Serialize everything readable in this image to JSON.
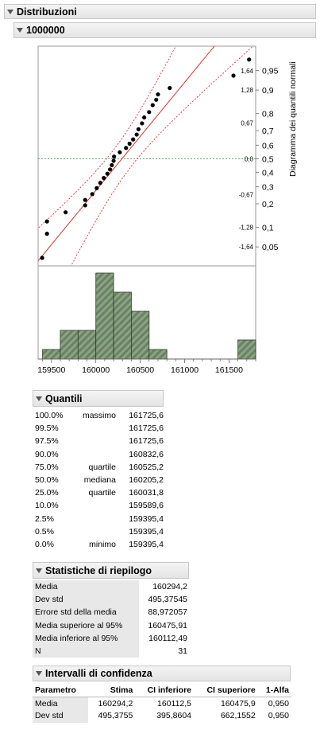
{
  "title": "Distribuzioni",
  "variable": "1000000",
  "chart_data": {
    "type": "scatter",
    "quantile_plot": {
      "side_label": "Diagramma dei quantili normali",
      "z_labels": [
        "1,64",
        "1,28",
        "0,67",
        "0,0",
        "-0,67",
        "-1,28",
        "-1,64"
      ],
      "z_values": [
        1.64,
        1.28,
        0.67,
        0.0,
        -0.67,
        -1.28,
        -1.64
      ],
      "prob_labels": [
        "0,95",
        "0,9",
        "0,8",
        "0,7",
        "0,6",
        "0,5",
        "0,4",
        "0,3",
        "0,2",
        "0,1",
        "0,05"
      ],
      "prob_values": [
        0.95,
        0.9,
        0.8,
        0.7,
        0.6,
        0.5,
        0.4,
        0.3,
        0.2,
        0.1,
        0.05
      ],
      "points": [
        [
          159395.4,
          -1.85
        ],
        [
          159450,
          -1.4
        ],
        [
          159450,
          -1.17
        ],
        [
          159660,
          -1.0
        ],
        [
          159880,
          -0.87
        ],
        [
          159880,
          -0.77
        ],
        [
          159960,
          -0.66
        ],
        [
          160010,
          -0.55
        ],
        [
          160050,
          -0.45
        ],
        [
          160090,
          -0.36
        ],
        [
          160130,
          -0.28
        ],
        [
          160160,
          -0.2
        ],
        [
          160180,
          -0.12
        ],
        [
          160200,
          -0.04
        ],
        [
          160205,
          0.04
        ],
        [
          160270,
          0.12
        ],
        [
          160340,
          0.2
        ],
        [
          160380,
          0.28
        ],
        [
          160420,
          0.36
        ],
        [
          160460,
          0.45
        ],
        [
          160480,
          0.55
        ],
        [
          160520,
          0.66
        ],
        [
          160545,
          0.77
        ],
        [
          160600,
          0.87
        ],
        [
          160640,
          1.0
        ],
        [
          160680,
          1.1
        ],
        [
          160700,
          1.2
        ],
        [
          160832.6,
          1.32
        ],
        [
          161550,
          1.55
        ],
        [
          161725.6,
          1.85
        ]
      ]
    },
    "histogram": {
      "bin_edges": [
        159400,
        159600,
        159800,
        160000,
        160200,
        160400,
        160600,
        160800,
        161000,
        161200,
        161400,
        161600,
        161800
      ],
      "counts": [
        1,
        3,
        3,
        9,
        7,
        5,
        1,
        0,
        0,
        0,
        0,
        2
      ],
      "fill": "#6b8163"
    },
    "x_ticks": [
      159500,
      160000,
      160500,
      161000,
      161500
    ],
    "xlim": [
      159350,
      161800
    ],
    "zlim": [
      -2.0,
      2.1
    ]
  },
  "quantiles": {
    "title": "Quantili",
    "rows": [
      {
        "pct": "100.0%",
        "label": "massimo",
        "value": "161725,6"
      },
      {
        "pct": "99.5%",
        "label": "",
        "value": "161725,6"
      },
      {
        "pct": "97.5%",
        "label": "",
        "value": "161725,6"
      },
      {
        "pct": "90.0%",
        "label": "",
        "value": "160832,6"
      },
      {
        "pct": "75.0%",
        "label": "quartile",
        "value": "160525,2"
      },
      {
        "pct": "50.0%",
        "label": "mediana",
        "value": "160205,2"
      },
      {
        "pct": "25.0%",
        "label": "quartile",
        "value": "160031,8"
      },
      {
        "pct": "10.0%",
        "label": "",
        "value": "159589,6"
      },
      {
        "pct": "2.5%",
        "label": "",
        "value": "159395,4"
      },
      {
        "pct": "0.5%",
        "label": "",
        "value": "159395,4"
      },
      {
        "pct": "0.0%",
        "label": "minimo",
        "value": "159395,4"
      }
    ]
  },
  "summary": {
    "title": "Statistiche di riepilogo",
    "rows": [
      {
        "label": "Media",
        "value": "160294,2"
      },
      {
        "label": "Dev std",
        "value": "495,37545"
      },
      {
        "label": "Errore std della media",
        "value": "88,972057"
      },
      {
        "label": "Media superiore al 95%",
        "value": "160475,91"
      },
      {
        "label": "Media inferiore al 95%",
        "value": "160112,49"
      },
      {
        "label": "N",
        "value": "31"
      }
    ]
  },
  "confidence": {
    "title": "Intervalli di confidenza",
    "headers": [
      "Parametro",
      "Stima",
      "CI inferiore",
      "CI superiore",
      "1-Alfa"
    ],
    "rows": [
      [
        "Media",
        "160294,2",
        "160112,5",
        "160475,9",
        "0,950"
      ],
      [
        "Dev std",
        "495,3755",
        "395,8604",
        "662,1552",
        "0,950"
      ]
    ]
  }
}
